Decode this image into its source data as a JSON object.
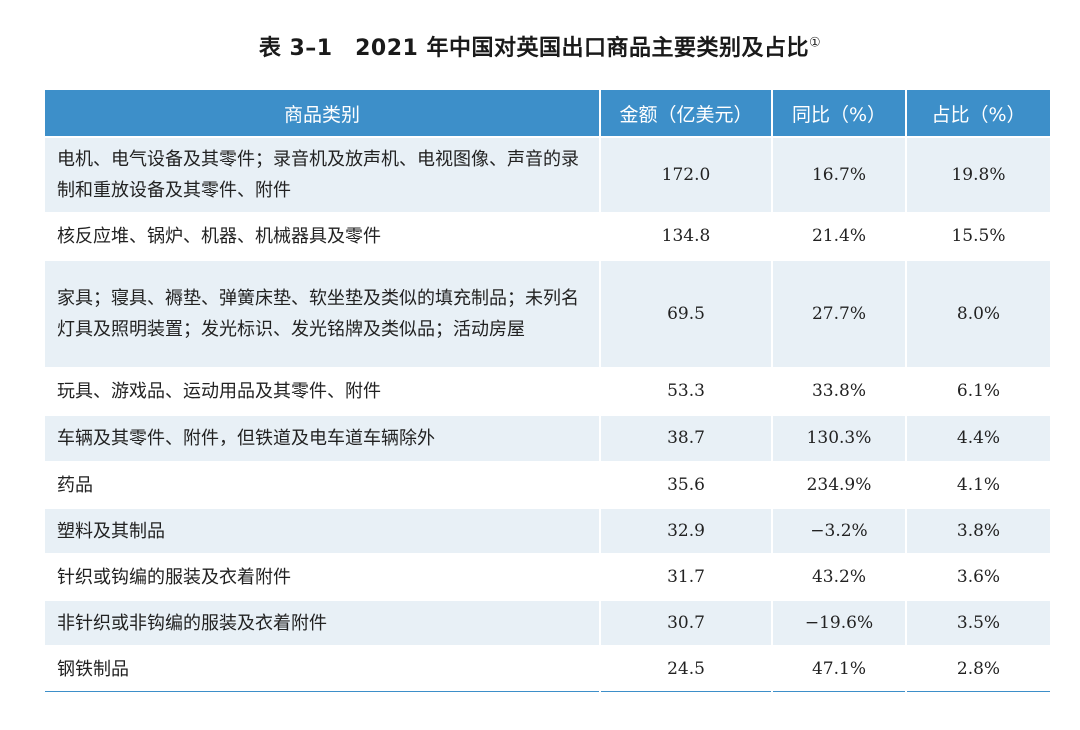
{
  "title": "表 3–1　2021 年中国对英国出口商品主要类别及占比",
  "title_note": "①",
  "table": {
    "headers": [
      "商品类别",
      "金额（亿美元）",
      "同比（%）",
      "占比（%）"
    ],
    "rows": [
      {
        "category": "电机、电气设备及其零件；录音机及放声机、电视图像、声音的录制和重放设备及其零件、附件",
        "amount": "172.0",
        "yoy": "16.7%",
        "share": "19.8%"
      },
      {
        "category": "核反应堆、锅炉、机器、机械器具及零件",
        "amount": "134.8",
        "yoy": "21.4%",
        "share": "15.5%"
      },
      {
        "category": "家具；寝具、褥垫、弹簧床垫、软坐垫及类似的填充制品；未列名灯具及照明装置；发光标识、发光铭牌及类似品；活动房屋",
        "amount": "69.5",
        "yoy": "27.7%",
        "share": "8.0%"
      },
      {
        "category": "玩具、游戏品、运动用品及其零件、附件",
        "amount": "53.3",
        "yoy": "33.8%",
        "share": "6.1%"
      },
      {
        "category": "车辆及其零件、附件，但铁道及电车道车辆除外",
        "amount": "38.7",
        "yoy": "130.3%",
        "share": "4.4%"
      },
      {
        "category": "药品",
        "amount": "35.6",
        "yoy": "234.9%",
        "share": "4.1%"
      },
      {
        "category": "塑料及其制品",
        "amount": "32.9",
        "yoy": "−3.2%",
        "share": "3.8%"
      },
      {
        "category": "针织或钩编的服装及衣着附件",
        "amount": "31.7",
        "yoy": "43.2%",
        "share": "3.6%"
      },
      {
        "category": "非针织或非钩编的服装及衣着附件",
        "amount": "30.7",
        "yoy": "−19.6%",
        "share": "3.5%"
      },
      {
        "category": "钢铁制品",
        "amount": "24.5",
        "yoy": "47.1%",
        "share": "2.8%"
      }
    ]
  },
  "colors": {
    "header_bg": "#3d8fc9",
    "row_alt_bg": "#e8f0f6"
  }
}
